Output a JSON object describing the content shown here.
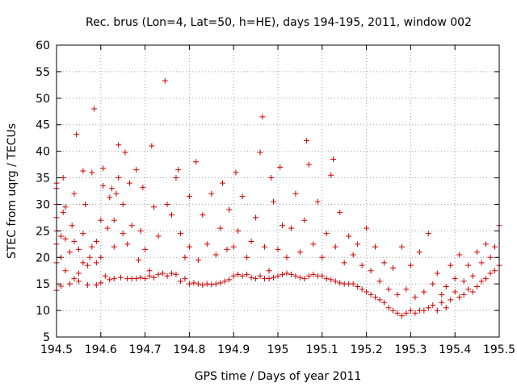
{
  "chart_data": {
    "type": "scatter",
    "title": "Rec. brus (Lon=4, Lat=50, h=HE), days 194-195, 2011, window 002",
    "xlabel": "GPS time / Days of year 2011",
    "ylabel": "STEC from uqrg / TECUs",
    "xlim": [
      194.5,
      195.5
    ],
    "ylim": [
      5,
      60
    ],
    "x_ticks": [
      "194.5",
      "194.6",
      "194.7",
      "194.8",
      "194.9",
      "195",
      "195.1",
      "195.2",
      "195.3",
      "195.4",
      "195.5"
    ],
    "y_ticks": [
      "5",
      "10",
      "15",
      "20",
      "25",
      "30",
      "35",
      "40",
      "45",
      "50",
      "55",
      "60"
    ],
    "grid": true,
    "marker": "+",
    "color": "#cc0000",
    "points": [
      [
        194.5,
        13.8
      ],
      [
        194.5,
        19.0
      ],
      [
        194.5,
        22.5
      ],
      [
        194.5,
        25.0
      ],
      [
        194.5,
        27.5
      ],
      [
        194.5,
        30.0
      ],
      [
        194.5,
        33.0
      ],
      [
        194.5,
        34.0
      ],
      [
        194.51,
        14.6
      ],
      [
        194.51,
        20.0
      ],
      [
        194.51,
        24.0
      ],
      [
        194.515,
        28.5
      ],
      [
        194.515,
        35.0
      ],
      [
        194.52,
        17.5
      ],
      [
        194.52,
        23.5
      ],
      [
        194.52,
        29.5
      ],
      [
        194.53,
        15.0
      ],
      [
        194.53,
        21.0
      ],
      [
        194.535,
        26.0
      ],
      [
        194.54,
        16.0
      ],
      [
        194.54,
        23.0
      ],
      [
        194.54,
        32.0
      ],
      [
        194.545,
        43.2
      ],
      [
        194.55,
        15.5
      ],
      [
        194.55,
        17.0
      ],
      [
        194.55,
        21.5
      ],
      [
        194.56,
        19.0
      ],
      [
        194.56,
        24.5
      ],
      [
        194.56,
        36.3
      ],
      [
        194.565,
        30.0
      ],
      [
        194.57,
        14.8
      ],
      [
        194.57,
        18.5
      ],
      [
        194.575,
        20.0
      ],
      [
        194.58,
        36.0
      ],
      [
        194.58,
        22.0
      ],
      [
        194.585,
        48.0
      ],
      [
        194.59,
        14.8
      ],
      [
        194.59,
        19.0
      ],
      [
        194.59,
        23.0
      ],
      [
        194.6,
        15.2
      ],
      [
        194.6,
        20.0
      ],
      [
        194.6,
        27.0
      ],
      [
        194.605,
        33.5
      ],
      [
        194.605,
        36.8
      ],
      [
        194.61,
        16.5
      ],
      [
        194.615,
        25.5
      ],
      [
        194.62,
        15.8
      ],
      [
        194.62,
        31.3
      ],
      [
        194.625,
        33.0
      ],
      [
        194.63,
        16.0
      ],
      [
        194.63,
        22.0
      ],
      [
        194.63,
        27.0
      ],
      [
        194.635,
        32.0
      ],
      [
        194.64,
        41.2
      ],
      [
        194.64,
        35.0
      ],
      [
        194.645,
        16.2
      ],
      [
        194.65,
        24.5
      ],
      [
        194.65,
        30.0
      ],
      [
        194.655,
        39.8
      ],
      [
        194.66,
        16.0
      ],
      [
        194.66,
        22.5
      ],
      [
        194.665,
        34.0
      ],
      [
        194.67,
        16.0
      ],
      [
        194.67,
        26.0
      ],
      [
        194.68,
        16.0
      ],
      [
        194.68,
        36.5
      ],
      [
        194.685,
        19.5
      ],
      [
        194.69,
        16.2
      ],
      [
        194.69,
        25.0
      ],
      [
        194.695,
        33.2
      ],
      [
        194.7,
        16.0
      ],
      [
        194.7,
        21.5
      ],
      [
        194.71,
        16.5
      ],
      [
        194.71,
        17.5
      ],
      [
        194.715,
        41.0
      ],
      [
        194.72,
        16.2
      ],
      [
        194.72,
        29.5
      ],
      [
        194.73,
        16.8
      ],
      [
        194.73,
        24.0
      ],
      [
        194.74,
        17.0
      ],
      [
        194.745,
        53.3
      ],
      [
        194.75,
        16.5
      ],
      [
        194.75,
        30.0
      ],
      [
        194.76,
        17.0
      ],
      [
        194.76,
        28.0
      ],
      [
        194.77,
        16.8
      ],
      [
        194.77,
        35.0
      ],
      [
        194.775,
        36.5
      ],
      [
        194.78,
        15.5
      ],
      [
        194.78,
        24.5
      ],
      [
        194.79,
        16.0
      ],
      [
        194.79,
        20.0
      ],
      [
        194.8,
        15.0
      ],
      [
        194.8,
        22.0
      ],
      [
        194.8,
        31.5
      ],
      [
        194.81,
        15.2
      ],
      [
        194.815,
        38.0
      ],
      [
        194.82,
        15.0
      ],
      [
        194.82,
        19.5
      ],
      [
        194.83,
        14.8
      ],
      [
        194.83,
        28.0
      ],
      [
        194.84,
        15.0
      ],
      [
        194.84,
        22.5
      ],
      [
        194.85,
        14.9
      ],
      [
        194.85,
        32.0
      ],
      [
        194.86,
        15.0
      ],
      [
        194.86,
        20.5
      ],
      [
        194.87,
        15.2
      ],
      [
        194.87,
        25.5
      ],
      [
        194.875,
        34.0
      ],
      [
        194.88,
        15.5
      ],
      [
        194.885,
        21.5
      ],
      [
        194.89,
        15.8
      ],
      [
        194.89,
        29.0
      ],
      [
        194.9,
        16.5
      ],
      [
        194.9,
        22.0
      ],
      [
        194.905,
        36.0
      ],
      [
        194.91,
        16.8
      ],
      [
        194.91,
        25.0
      ],
      [
        194.92,
        16.5
      ],
      [
        194.92,
        31.5
      ],
      [
        194.93,
        16.8
      ],
      [
        194.93,
        20.0
      ],
      [
        194.94,
        16.2
      ],
      [
        194.94,
        23.0
      ],
      [
        194.95,
        16.0
      ],
      [
        194.95,
        27.5
      ],
      [
        194.96,
        16.5
      ],
      [
        194.96,
        39.8
      ],
      [
        194.965,
        46.5
      ],
      [
        194.97,
        16.0
      ],
      [
        194.97,
        22.0
      ],
      [
        194.98,
        16.0
      ],
      [
        194.98,
        17.5
      ],
      [
        194.985,
        35.0
      ],
      [
        194.99,
        16.2
      ],
      [
        194.99,
        30.5
      ],
      [
        195.0,
        16.5
      ],
      [
        195.0,
        21.5
      ],
      [
        195.005,
        37.0
      ],
      [
        195.01,
        16.8
      ],
      [
        195.01,
        26.0
      ],
      [
        195.02,
        17.0
      ],
      [
        195.02,
        20.0
      ],
      [
        195.03,
        16.8
      ],
      [
        195.03,
        25.5
      ],
      [
        195.04,
        16.5
      ],
      [
        195.04,
        32.0
      ],
      [
        195.05,
        16.2
      ],
      [
        195.05,
        21.0
      ],
      [
        195.06,
        16.0
      ],
      [
        195.06,
        27.0
      ],
      [
        195.065,
        42.0
      ],
      [
        195.07,
        16.5
      ],
      [
        195.07,
        37.5
      ],
      [
        195.08,
        16.8
      ],
      [
        195.08,
        22.5
      ],
      [
        195.09,
        16.5
      ],
      [
        195.09,
        30.5
      ],
      [
        195.1,
        16.5
      ],
      [
        195.1,
        20.0
      ],
      [
        195.11,
        16.0
      ],
      [
        195.11,
        24.5
      ],
      [
        195.12,
        15.8
      ],
      [
        195.12,
        35.5
      ],
      [
        195.125,
        38.5
      ],
      [
        195.13,
        15.5
      ],
      [
        195.13,
        22.0
      ],
      [
        195.14,
        15.2
      ],
      [
        195.14,
        28.5
      ],
      [
        195.15,
        15.0
      ],
      [
        195.15,
        19.0
      ],
      [
        195.16,
        15.0
      ],
      [
        195.16,
        24.0
      ],
      [
        195.17,
        15.0
      ],
      [
        195.17,
        20.5
      ],
      [
        195.18,
        14.5
      ],
      [
        195.18,
        22.5
      ],
      [
        195.19,
        14.0
      ],
      [
        195.19,
        18.5
      ],
      [
        195.2,
        13.5
      ],
      [
        195.2,
        25.5
      ],
      [
        195.21,
        13.0
      ],
      [
        195.21,
        17.5
      ],
      [
        195.22,
        12.5
      ],
      [
        195.22,
        22.0
      ],
      [
        195.23,
        12.0
      ],
      [
        195.23,
        15.5
      ],
      [
        195.24,
        11.5
      ],
      [
        195.24,
        19.0
      ],
      [
        195.25,
        10.5
      ],
      [
        195.25,
        14.0
      ],
      [
        195.26,
        10.0
      ],
      [
        195.26,
        18.0
      ],
      [
        195.27,
        9.5
      ],
      [
        195.27,
        13.0
      ],
      [
        195.28,
        9.0
      ],
      [
        195.28,
        22.0
      ],
      [
        195.29,
        9.5
      ],
      [
        195.29,
        14.0
      ],
      [
        195.3,
        10.0
      ],
      [
        195.3,
        18.5
      ],
      [
        195.31,
        9.5
      ],
      [
        195.31,
        12.5
      ],
      [
        195.32,
        10.0
      ],
      [
        195.32,
        21.0
      ],
      [
        195.33,
        10.0
      ],
      [
        195.33,
        13.5
      ],
      [
        195.34,
        10.5
      ],
      [
        195.34,
        24.5
      ],
      [
        195.35,
        11.0
      ],
      [
        195.35,
        15.0
      ],
      [
        195.36,
        10.0
      ],
      [
        195.36,
        17.0
      ],
      [
        195.37,
        11.5
      ],
      [
        195.37,
        13.0
      ],
      [
        195.38,
        10.5
      ],
      [
        195.38,
        14.5
      ],
      [
        195.39,
        12.0
      ],
      [
        195.39,
        18.5
      ],
      [
        195.4,
        13.5
      ],
      [
        195.4,
        16.0
      ],
      [
        195.41,
        12.5
      ],
      [
        195.41,
        20.5
      ],
      [
        195.42,
        13.0
      ],
      [
        195.42,
        15.5
      ],
      [
        195.43,
        14.0
      ],
      [
        195.43,
        18.5
      ],
      [
        195.44,
        13.5
      ],
      [
        195.44,
        16.5
      ],
      [
        195.45,
        14.5
      ],
      [
        195.45,
        21.0
      ],
      [
        195.46,
        15.5
      ],
      [
        195.46,
        19.0
      ],
      [
        195.47,
        16.0
      ],
      [
        195.47,
        22.5
      ],
      [
        195.48,
        17.0
      ],
      [
        195.48,
        20.0
      ],
      [
        195.49,
        17.5
      ],
      [
        195.49,
        22.0
      ],
      [
        195.5,
        18.5
      ],
      [
        195.5,
        26.0
      ]
    ]
  }
}
